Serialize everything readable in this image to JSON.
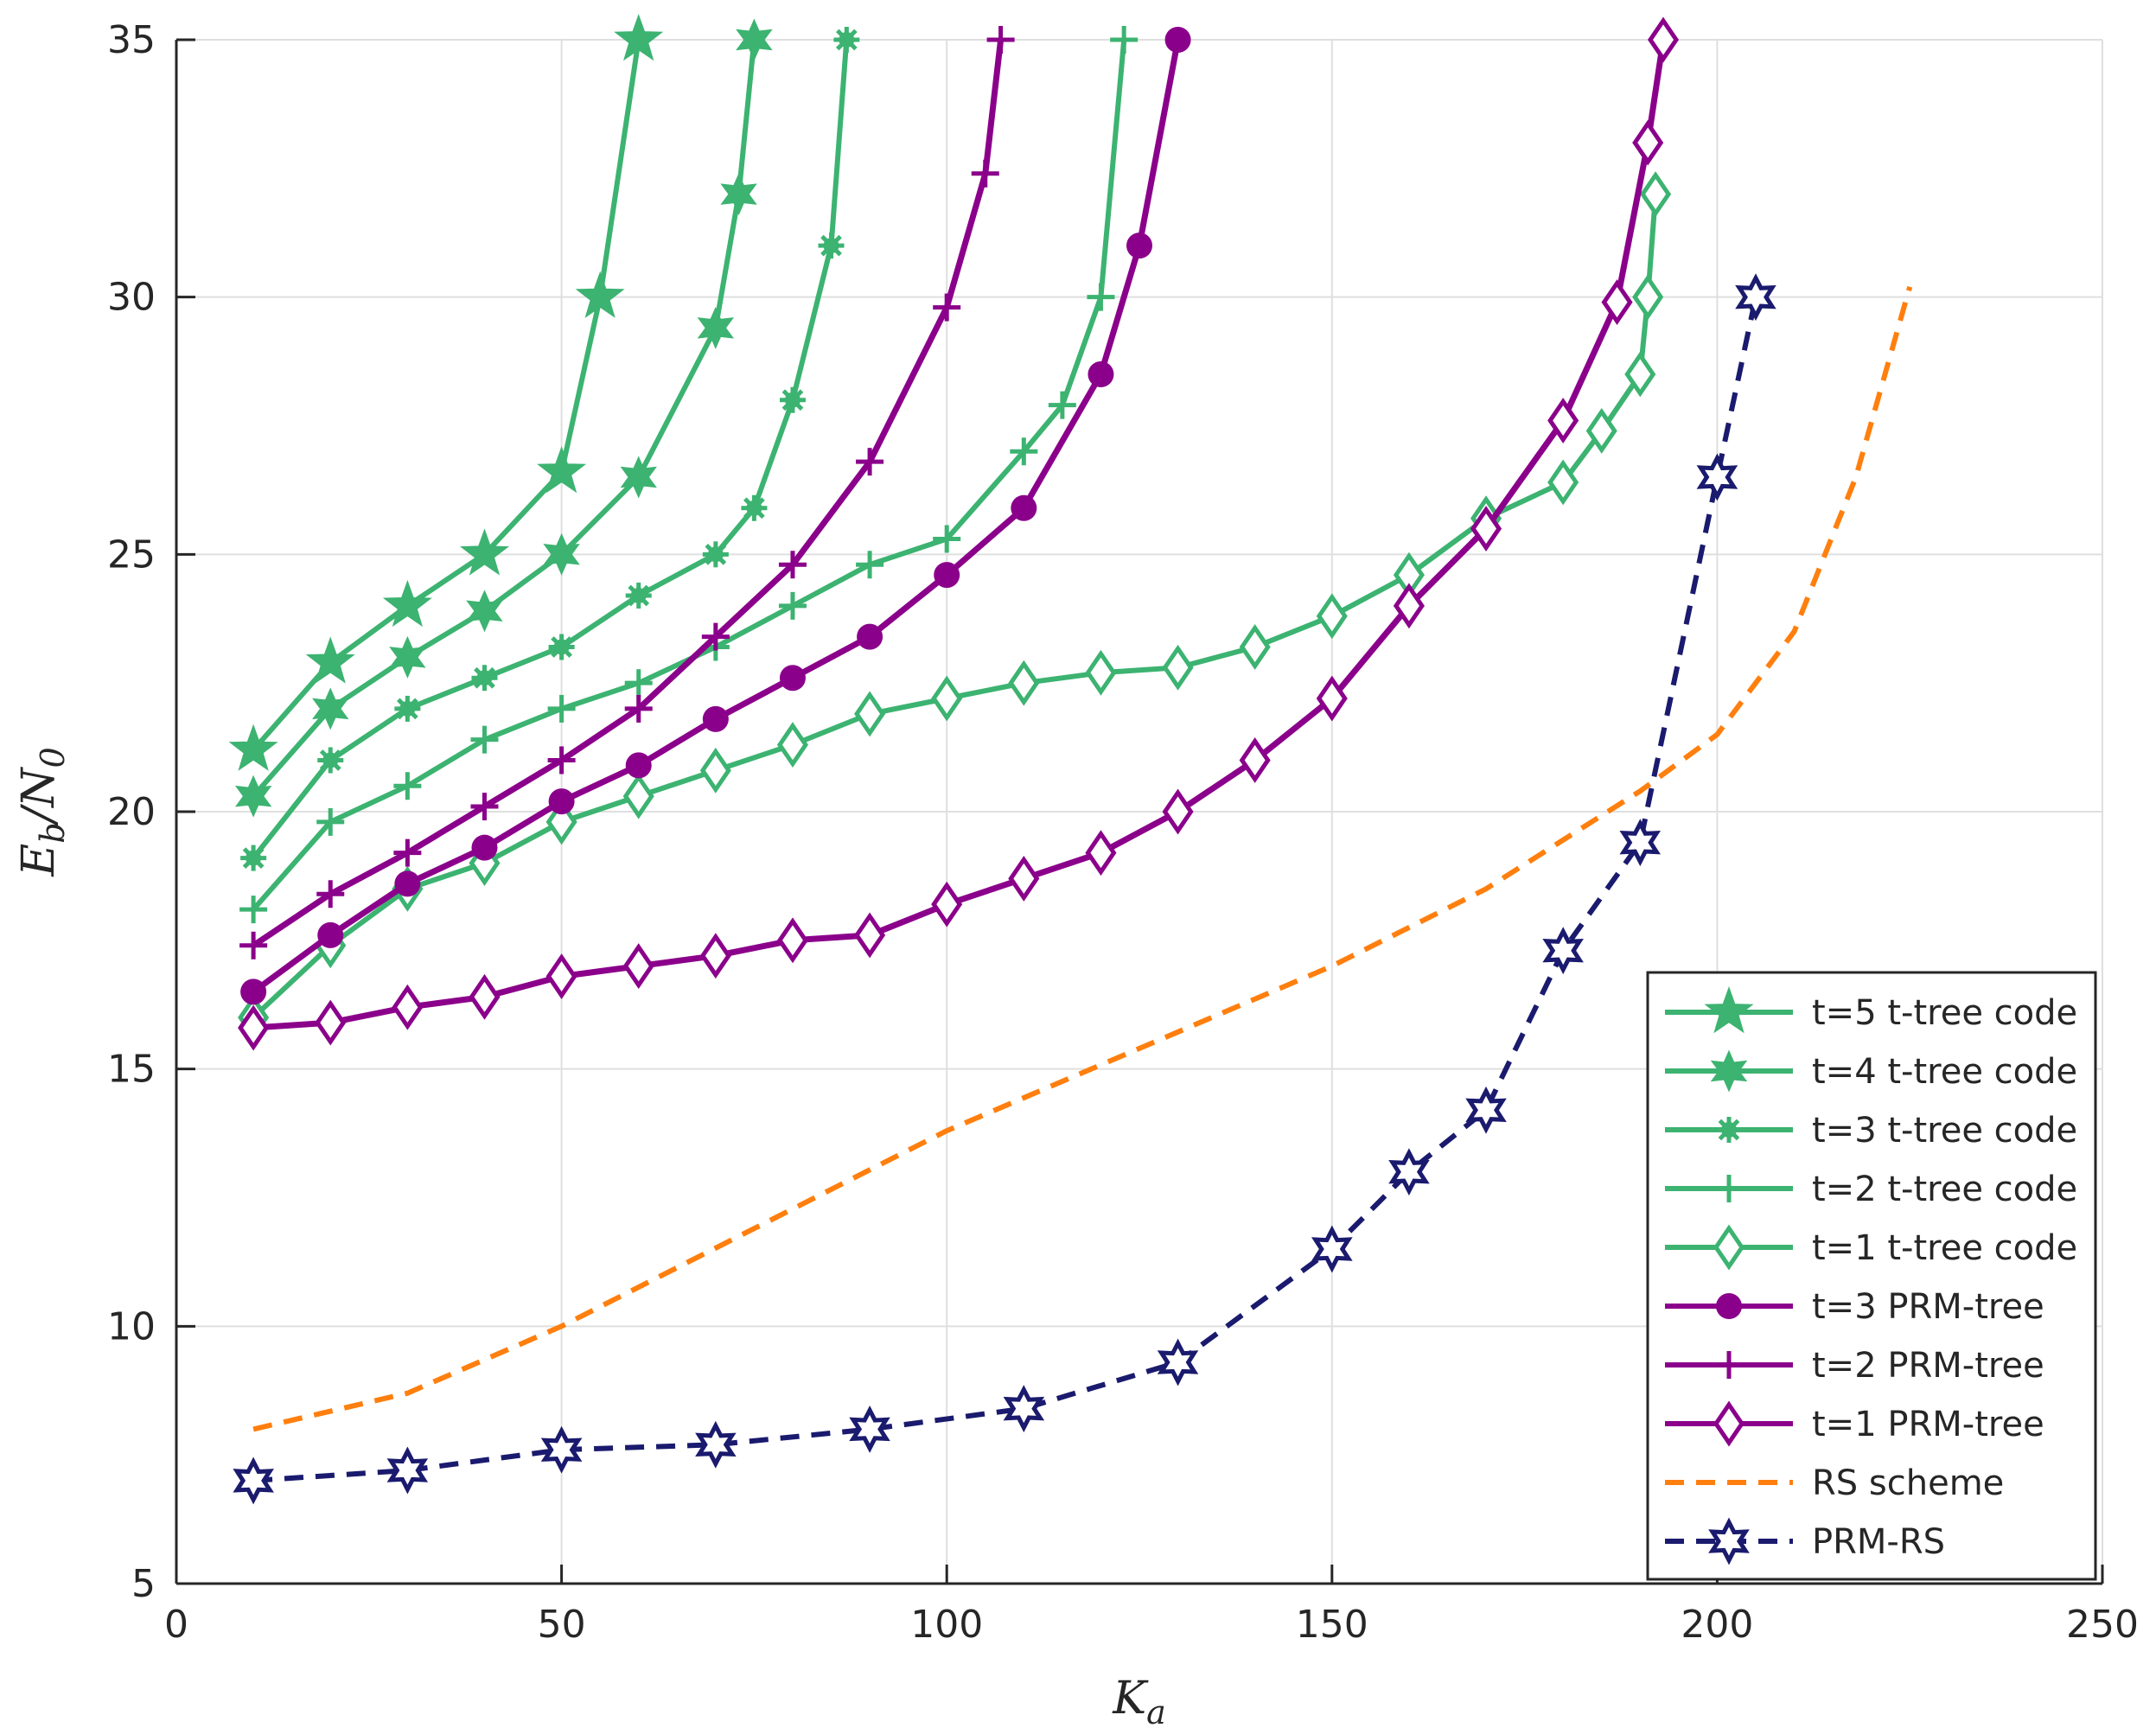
{
  "chart_data": {
    "type": "line",
    "title": "",
    "xlabel": "K_a",
    "ylabel": "E_b/N_0",
    "xlim": [
      0,
      250
    ],
    "ylim": [
      5,
      35
    ],
    "xticks": [
      0,
      50,
      100,
      150,
      200,
      250
    ],
    "yticks": [
      5,
      10,
      15,
      20,
      25,
      30,
      35
    ],
    "grid": true,
    "legend_position": "bottom-right",
    "series": [
      {
        "name": "t=5 t-tree code",
        "color": "#3cb371",
        "marker": "star5",
        "dash": "solid",
        "x": [
          10,
          20,
          30,
          40,
          50,
          55,
          60
        ],
        "y": [
          21.2,
          22.9,
          24.0,
          25.0,
          26.6,
          30.0,
          35.0
        ]
      },
      {
        "name": "t=4 t-tree code",
        "color": "#3cb371",
        "marker": "star6",
        "dash": "solid",
        "x": [
          10,
          20,
          30,
          40,
          50,
          60,
          70,
          73,
          75
        ],
        "y": [
          20.3,
          22.0,
          23.0,
          23.9,
          25.0,
          26.5,
          29.4,
          32.0,
          35.0
        ]
      },
      {
        "name": "t=3 t-tree code",
        "color": "#3cb371",
        "marker": "asterisk",
        "dash": "solid",
        "x": [
          10,
          20,
          30,
          40,
          50,
          60,
          70,
          75,
          80,
          85,
          87
        ],
        "y": [
          19.1,
          21.0,
          22.0,
          22.6,
          23.2,
          24.2,
          25.0,
          25.9,
          28.0,
          31.0,
          35.0
        ]
      },
      {
        "name": "t=2 t-tree code",
        "color": "#3cb371",
        "marker": "plus",
        "dash": "solid",
        "x": [
          10,
          20,
          30,
          40,
          50,
          60,
          70,
          80,
          90,
          100,
          110,
          115,
          120,
          123
        ],
        "y": [
          18.1,
          19.8,
          20.5,
          21.4,
          22.0,
          22.5,
          23.2,
          24.0,
          24.8,
          25.3,
          27.0,
          27.9,
          30.0,
          35.0
        ]
      },
      {
        "name": "t=1 t-tree code",
        "color": "#3cb371",
        "marker": "diamond",
        "dash": "solid",
        "x": [
          10,
          20,
          30,
          40,
          50,
          60,
          70,
          80,
          90,
          100,
          110,
          120,
          130,
          140,
          150,
          160,
          170,
          180,
          185,
          190,
          191,
          192
        ],
        "y": [
          16.0,
          17.4,
          18.5,
          19.0,
          19.8,
          20.3,
          20.8,
          21.3,
          21.9,
          22.2,
          22.5,
          22.7,
          22.8,
          23.2,
          23.8,
          24.6,
          25.7,
          26.4,
          27.4,
          28.5,
          30.0,
          32.0
        ]
      },
      {
        "name": "t=3 PRM-tree",
        "color": "#8b008b",
        "marker": "circle",
        "dash": "solid",
        "x": [
          10,
          20,
          30,
          40,
          50,
          60,
          70,
          80,
          90,
          100,
          110,
          120,
          125,
          130
        ],
        "y": [
          16.5,
          17.6,
          18.6,
          19.3,
          20.2,
          20.9,
          21.8,
          22.6,
          23.4,
          24.6,
          25.9,
          28.5,
          31.0,
          35.0
        ]
      },
      {
        "name": "t=2 PRM-tree",
        "color": "#8b008b",
        "marker": "plus",
        "dash": "solid",
        "x": [
          10,
          20,
          30,
          40,
          50,
          60,
          70,
          80,
          90,
          100,
          105,
          107
        ],
        "y": [
          17.4,
          18.4,
          19.2,
          20.1,
          21.0,
          22.0,
          23.4,
          24.8,
          26.8,
          29.8,
          32.4,
          35.0
        ]
      },
      {
        "name": "t=1 PRM-tree",
        "color": "#8b008b",
        "marker": "diamond",
        "dash": "solid",
        "x": [
          10,
          20,
          30,
          40,
          50,
          60,
          70,
          80,
          90,
          100,
          110,
          120,
          130,
          140,
          150,
          160,
          170,
          180,
          187,
          191,
          193
        ],
        "y": [
          15.8,
          15.9,
          16.2,
          16.4,
          16.8,
          17.0,
          17.2,
          17.5,
          17.6,
          18.2,
          18.7,
          19.2,
          20.0,
          21.0,
          22.2,
          24.0,
          25.5,
          27.6,
          29.9,
          33.0,
          35.0
        ]
      },
      {
        "name": "RS scheme",
        "color": "#ff7f0e",
        "marker": "none",
        "dash": "dashed",
        "x": [
          10,
          30,
          50,
          75,
          100,
          125,
          150,
          170,
          190,
          200,
          210,
          218,
          225
        ],
        "y": [
          8.0,
          8.7,
          10.0,
          11.9,
          13.8,
          15.4,
          17.0,
          18.5,
          20.4,
          21.5,
          23.5,
          26.5,
          30.2
        ]
      },
      {
        "name": "PRM-RS",
        "color": "#1a1a6e",
        "marker": "hexagram",
        "dash": "dashed",
        "x": [
          10,
          30,
          50,
          70,
          90,
          110,
          130,
          150,
          160,
          170,
          180,
          190,
          200,
          205
        ],
        "y": [
          7.0,
          7.2,
          7.6,
          7.7,
          8.0,
          8.4,
          9.3,
          11.5,
          13.0,
          14.2,
          17.3,
          19.4,
          26.5,
          30.0
        ]
      }
    ]
  }
}
